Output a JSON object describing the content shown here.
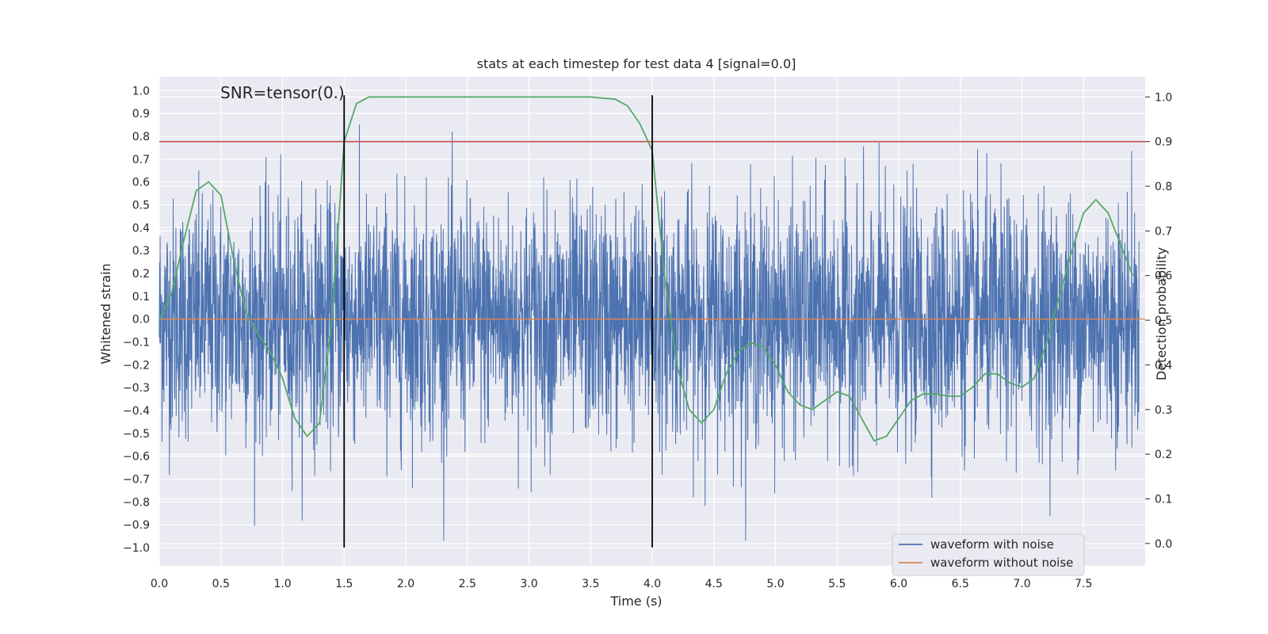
{
  "chart_data": {
    "type": "line",
    "title": "stats at each timestep for test data 4 [signal=0.0]",
    "xlabel": "Time (s)",
    "ylabel_left": "Whitened strain",
    "ylabel_right": "Detection probability",
    "annotation": "SNR=tensor(0.)",
    "xlim": [
      0.0,
      8.0
    ],
    "ylim_left": [
      -1.08,
      1.06
    ],
    "ylim_right": [
      -0.05,
      1.045
    ],
    "x_ticks": [
      "0.0",
      "0.5",
      "1.0",
      "1.5",
      "2.0",
      "2.5",
      "3.0",
      "3.5",
      "4.0",
      "4.5",
      "5.0",
      "5.5",
      "6.0",
      "6.5",
      "7.0",
      "7.5"
    ],
    "y_ticks_left": [
      "1.0",
      "0.9",
      "0.8",
      "0.7",
      "0.6",
      "0.5",
      "0.4",
      "0.3",
      "0.2",
      "0.1",
      "0.0",
      "−0.1",
      "−0.2",
      "−0.3",
      "−0.4",
      "−0.5",
      "−0.6",
      "−0.7",
      "−0.8",
      "−0.9",
      "−1.0"
    ],
    "y_ticks_right": [
      "1.0",
      "0.9",
      "0.8",
      "0.7",
      "0.6",
      "0.5",
      "0.4",
      "0.3",
      "0.2",
      "0.1",
      "0.0"
    ],
    "grid": true,
    "legend_position": "lower-right",
    "series": [
      {
        "name": "waveform with noise",
        "axis": "left",
        "color": "#4c72b0",
        "style": "dense noise, approx. amplitude within ±0.97"
      },
      {
        "name": "waveform without noise",
        "axis": "left",
        "color": "#dd8452",
        "values_constant": 0.0
      },
      {
        "name": "detection probability",
        "axis": "right",
        "color": "#55a868",
        "x": [
          0.0,
          0.1,
          0.2,
          0.3,
          0.4,
          0.5,
          0.6,
          0.7,
          0.8,
          0.9,
          1.0,
          1.1,
          1.2,
          1.3,
          1.4,
          1.5,
          1.6,
          1.7,
          1.8,
          2.0,
          2.5,
          3.0,
          3.5,
          3.7,
          3.8,
          3.9,
          4.0,
          4.1,
          4.2,
          4.3,
          4.4,
          4.5,
          4.6,
          4.7,
          4.8,
          4.9,
          5.0,
          5.1,
          5.2,
          5.3,
          5.4,
          5.5,
          5.6,
          5.7,
          5.8,
          5.9,
          6.0,
          6.1,
          6.2,
          6.3,
          6.4,
          6.5,
          6.6,
          6.7,
          6.8,
          6.9,
          7.0,
          7.1,
          7.2,
          7.3,
          7.4,
          7.5,
          7.6,
          7.7,
          7.8,
          7.9
        ],
        "y": [
          0.5,
          0.56,
          0.68,
          0.79,
          0.81,
          0.78,
          0.64,
          0.52,
          0.47,
          0.43,
          0.37,
          0.28,
          0.24,
          0.27,
          0.5,
          0.9,
          0.985,
          1.0,
          1.0,
          1.0,
          1.0,
          1.0,
          1.0,
          0.995,
          0.98,
          0.94,
          0.88,
          0.6,
          0.4,
          0.3,
          0.27,
          0.3,
          0.38,
          0.43,
          0.45,
          0.44,
          0.4,
          0.34,
          0.31,
          0.3,
          0.32,
          0.34,
          0.33,
          0.28,
          0.23,
          0.24,
          0.28,
          0.32,
          0.335,
          0.335,
          0.33,
          0.33,
          0.35,
          0.38,
          0.38,
          0.36,
          0.35,
          0.37,
          0.45,
          0.55,
          0.65,
          0.74,
          0.77,
          0.74,
          0.67,
          0.6
        ]
      }
    ],
    "threshold_line": {
      "axis": "right",
      "value": 0.9,
      "color": "#c44e52"
    },
    "vertical_markers": [
      1.5,
      4.0
    ]
  }
}
